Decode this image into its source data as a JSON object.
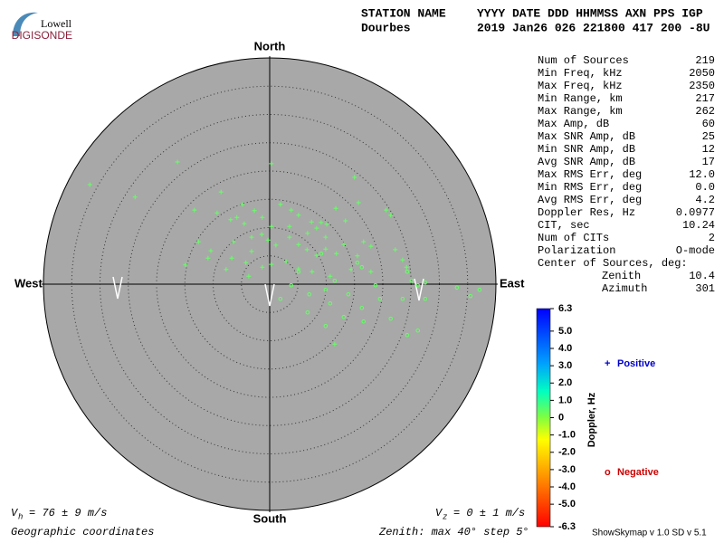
{
  "logo": {
    "top": "Lowell",
    "bottom": "DIGISONDE"
  },
  "header": {
    "rows": [
      [
        "STATION NAME",
        "YYYY DATE  DDD HHMMSS AXN PPS IGP"
      ],
      [
        "Dourbes",
        "2019 Jan26 026 221800 417 200 -8U"
      ]
    ]
  },
  "stats": [
    [
      "Num of Sources",
      "219"
    ],
    [
      "Min Freq, kHz",
      "2050"
    ],
    [
      "Max Freq, kHz",
      "2350"
    ],
    [
      "Min Range, km",
      "217"
    ],
    [
      "Max Range, km",
      "262"
    ],
    [
      "Max Amp, dB",
      "60"
    ],
    [
      "Max SNR Amp, dB",
      "25"
    ],
    [
      "Min SNR Amp, dB",
      "12"
    ],
    [
      "Avg SNR Amp, dB",
      "17"
    ],
    [
      "Max RMS Err, deg",
      "12.0"
    ],
    [
      "Min RMS Err, deg",
      "0.0"
    ],
    [
      "Avg RMS Err, deg",
      "4.2"
    ],
    [
      "Doppler Res, Hz",
      "0.0977"
    ],
    [
      "CIT, sec",
      "10.24"
    ],
    [
      "Num of CITs",
      "2"
    ],
    [
      "Polarization",
      "O-mode"
    ]
  ],
  "center": {
    "label": "Center of Sources, deg:",
    "rows": [
      [
        "Zenith",
        "10.4"
      ],
      [
        "Azimuth",
        "301"
      ]
    ]
  },
  "skymap": {
    "directions": {
      "north": "North",
      "south": "South",
      "east": "East",
      "west": "West"
    },
    "zlim": 40,
    "rings": [
      5,
      10,
      15,
      20,
      25,
      30,
      35,
      40
    ],
    "sources": {
      "positive": {
        "color": "#66ff66",
        "x": [
          -31.8,
          -23.8,
          -16.3,
          0.3,
          15.0,
          15.7,
          -8.6,
          -13.3,
          -9.3,
          -4.8,
          -2.7,
          -6.9,
          -5.8,
          -4.5,
          -1.3,
          1.9,
          3.8,
          5.1,
          7.4,
          8.3,
          10.1,
          11.7,
          13.4,
          20.6,
          21.4,
          -12.6,
          -10.4,
          -6.4,
          -3.2,
          -1.4,
          -0.3,
          1.1,
          3.5,
          5.1,
          6.6,
          8.3,
          9.9,
          11.8,
          13.1,
          15.5,
          16.6,
          17.9,
          22.2,
          23.5,
          -14.9,
          -6.7,
          -4.2,
          -1.3,
          0.3,
          2.9,
          5.1,
          7.5,
          10.7,
          14.4,
          17.9,
          24.2,
          -3.7,
          -3.2,
          9.9,
          9.1,
          0.3,
          3.5,
          6.7,
          11.5,
          -7.7,
          -10.9
        ],
        "y": [
          17.6,
          15.4,
          21.6,
          21.3,
          18.9,
          14.4,
          16.3,
          13.1,
          12.6,
          14.1,
          13.0,
          11.4,
          11.8,
          10.7,
          11.8,
          14.1,
          13.1,
          12.2,
          11.0,
          9.9,
          10.6,
          13.4,
          11.2,
          13.1,
          12.2,
          7.5,
          5.9,
          7.5,
          8.3,
          8.8,
          7.8,
          6.9,
          8.3,
          7.0,
          6.1,
          5.1,
          6.2,
          5.4,
          7.0,
          5.0,
          7.5,
          6.7,
          6.1,
          4.3,
          3.4,
          4.6,
          3.8,
          3.0,
          3.5,
          4.0,
          2.7,
          2.2,
          1.4,
          2.6,
          2.2,
          3.0,
          1.4,
          5.8,
          8.3,
          10.9,
          10.2,
          10.2,
          9.0,
          -10.6,
          2.6,
          4.6
        ]
      },
      "negative": {
        "color": "#66ff66",
        "x": [
          9.1,
          5.1,
          9.9,
          6.7,
          10.7,
          13.9,
          16.3,
          19.5,
          21.4,
          24.3,
          25.1,
          26.2,
          27.5,
          33.1,
          35.5,
          37.1,
          26.2,
          24.3,
          15.5,
          16.3,
          13.1,
          9.9,
          7.0,
          1.9,
          3.8,
          11.5,
          18.7,
          23.5,
          27.5,
          16.6
        ],
        "y": [
          5.4,
          2.2,
          -1.0,
          -5.0,
          -3.4,
          -1.8,
          -4.2,
          -2.6,
          -6.1,
          2.2,
          0.6,
          -0.2,
          0.3,
          -0.6,
          -2.1,
          -1.0,
          -8.2,
          -9.0,
          3.8,
          3.0,
          -5.8,
          -7.4,
          -1.8,
          -2.6,
          -0.2,
          0.6,
          -0.2,
          -2.6,
          -2.6,
          -6.6
        ]
      }
    }
  },
  "colorbar": {
    "label": "Doppler, Hz",
    "lim": [
      -6.3,
      6.3
    ],
    "ticks": [
      6.3,
      {
        "value": 5,
        "label": "5.0"
      },
      {
        "value": 4,
        "label": "4.0"
      },
      {
        "value": 3,
        "label": "3.0"
      },
      {
        "value": 2,
        "label": "2.0"
      },
      {
        "value": 1,
        "label": "1.0"
      },
      0,
      {
        "value": -1,
        "label": "-1.0"
      },
      {
        "value": -2,
        "label": "-2.0"
      },
      {
        "value": -3,
        "label": "-3.0"
      },
      {
        "value": -4,
        "label": "-4.0"
      },
      {
        "value": -5,
        "label": "-5.0"
      },
      -6.3
    ]
  },
  "legend": {
    "positive": {
      "symbol": "+",
      "label": "Positive"
    },
    "negative": {
      "symbol": "o",
      "label": "Negative"
    }
  },
  "footer": {
    "vh": {
      "symbol": "V",
      "sub": "h",
      "text": "= 76 ± 9 m/s"
    },
    "vz": {
      "symbol": "V",
      "sub": "z",
      "text": "= 0 ± 1 m/s"
    },
    "coords": "Geographic coordinates",
    "zenith": "Zenith: max 40°  step 5°",
    "version": "ShowSkymap v 1.0   SD v 5.1"
  }
}
